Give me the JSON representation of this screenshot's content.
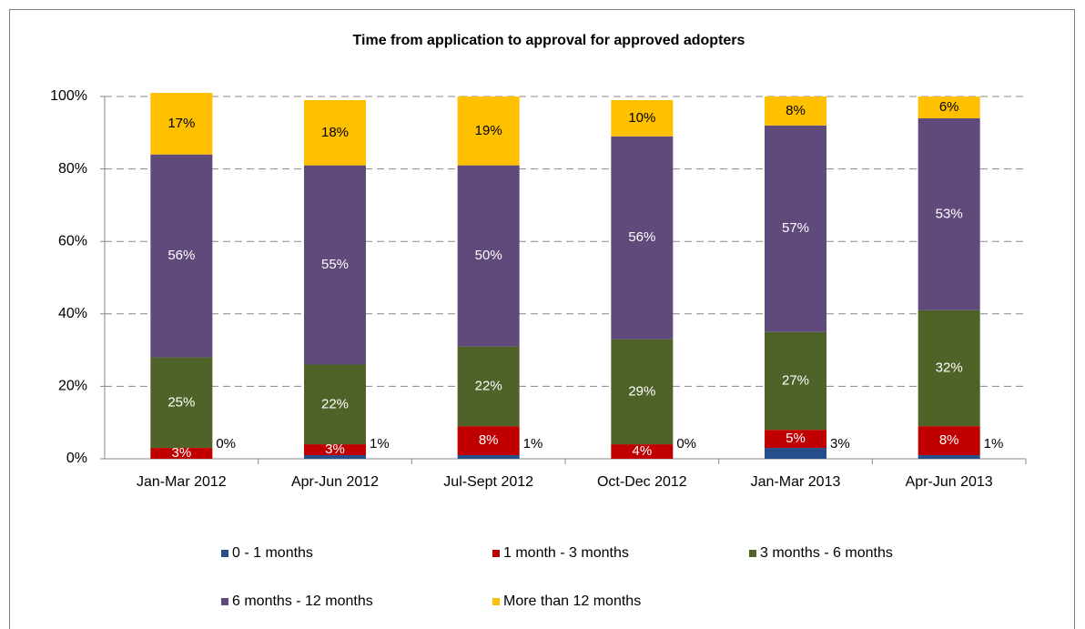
{
  "chart_data": {
    "type": "bar",
    "stacked": true,
    "title": "Time from application to approval for approved adopters",
    "categories": [
      "Jan-Mar 2012",
      "Apr-Jun 2012",
      "Jul-Sept 2012",
      "Oct-Dec 2012",
      "Jan-Mar 2013",
      "Apr-Jun 2013"
    ],
    "series": [
      {
        "name": "0 - 1 months",
        "color": "#254e8a",
        "values": [
          0,
          1,
          1,
          0,
          3,
          1
        ],
        "value_labels": [
          "0%",
          "1%",
          "1%",
          "0%",
          "3%",
          "1%"
        ]
      },
      {
        "name": "1 month - 3 months",
        "color": "#c00000",
        "values": [
          3,
          3,
          8,
          4,
          5,
          8
        ],
        "value_labels": [
          "3%",
          "3%",
          "8%",
          "4%",
          "5%",
          "8%"
        ]
      },
      {
        "name": "3 months - 6 months",
        "color": "#4f6228",
        "values": [
          25,
          22,
          22,
          29,
          27,
          32
        ],
        "value_labels": [
          "25%",
          "22%",
          "22%",
          "29%",
          "27%",
          "32%"
        ]
      },
      {
        "name": "6 months - 12 months",
        "color": "#604a7b",
        "values": [
          56,
          55,
          50,
          56,
          57,
          53
        ],
        "value_labels": [
          "56%",
          "55%",
          "50%",
          "56%",
          "57%",
          "53%"
        ]
      },
      {
        "name": "More than 12 months",
        "color": "#ffc000",
        "values": [
          17,
          18,
          19,
          10,
          8,
          6
        ],
        "value_labels": [
          "17%",
          "18%",
          "19%",
          "10%",
          "8%",
          "6%"
        ]
      }
    ],
    "ylim": [
      0,
      100
    ],
    "yticks": [
      {
        "value": 0,
        "label": "0%"
      },
      {
        "value": 20,
        "label": "20%"
      },
      {
        "value": 40,
        "label": "40%"
      },
      {
        "value": 60,
        "label": "60%"
      },
      {
        "value": 80,
        "label": "80%"
      },
      {
        "value": 100,
        "label": "100%"
      }
    ],
    "grid": true,
    "legend": "bottom"
  }
}
